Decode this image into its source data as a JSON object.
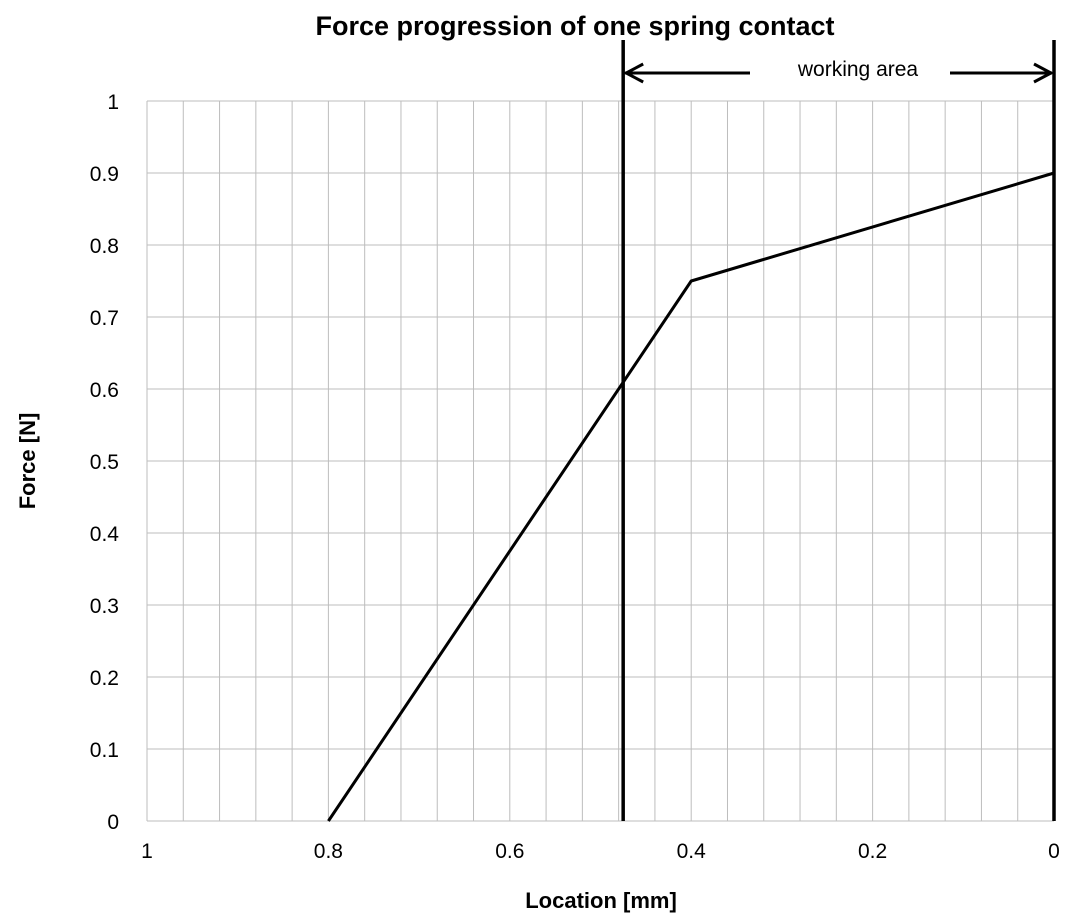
{
  "chart_data": {
    "type": "line",
    "title": "Force progression of one spring contact",
    "xlabel": "Location [mm]",
    "ylabel": "Force [N]",
    "xlim": [
      1,
      0
    ],
    "x_reversed": true,
    "ylim": [
      0,
      1
    ],
    "grid": true,
    "x_ticks": [
      "1",
      "0.8",
      "0.6",
      "0.4",
      "0.2",
      "0"
    ],
    "y_ticks": [
      "0",
      "0.1",
      "0.2",
      "0.3",
      "0.4",
      "0.5",
      "0.6",
      "0.7",
      "0.8",
      "0.9",
      "1"
    ],
    "series": [
      {
        "x": [
          0.8,
          0.4,
          0.0
        ],
        "y": [
          0.0,
          0.75,
          0.9
        ]
      }
    ],
    "annotations": {
      "working_area": {
        "label": "working area",
        "x_start": 0.475,
        "x_end": 0.0
      }
    }
  }
}
